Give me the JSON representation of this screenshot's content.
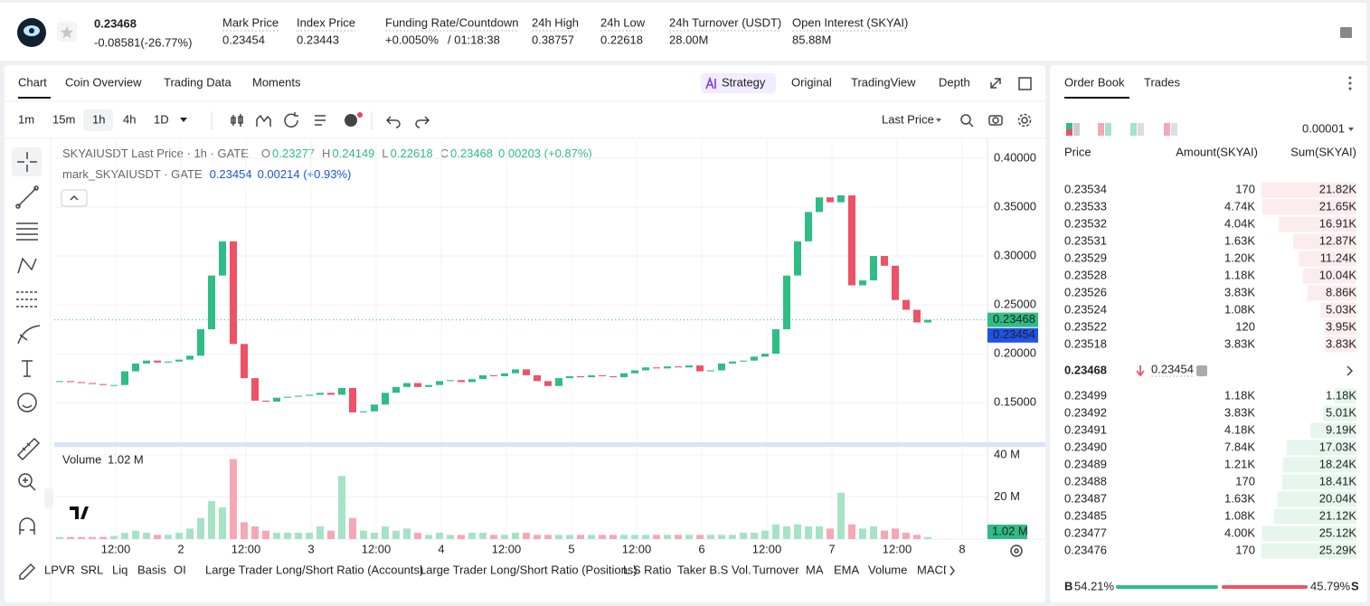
{
  "header": {
    "price": "0.23468",
    "change": "-0.08581(-26.77%)",
    "stats": [
      {
        "label": "Mark Price",
        "value": "0.23454"
      },
      {
        "label": "Index Price",
        "value": "0.23443"
      },
      {
        "label": "Funding Rate/Countdown",
        "value": "+0.0050%",
        "extra": "/ 01:18:38"
      },
      {
        "label": "24h High",
        "value": "0.38757"
      },
      {
        "label": "24h Low",
        "value": "0.22618"
      },
      {
        "label": "24h Turnover (USDT)",
        "value": "28.00M"
      },
      {
        "label": "Open Interest (SKYAI)",
        "value": "85.88M"
      }
    ]
  },
  "chart_tabs": [
    "Chart",
    "Coin Overview",
    "Trading Data",
    "Moments"
  ],
  "view_tabs": [
    "Strategy",
    "Original",
    "TradingView",
    "Depth"
  ],
  "intervals": [
    "1m",
    "15m",
    "1h",
    "4h",
    "1D"
  ],
  "price_source": "Last Price",
  "legend": {
    "title": "SKYAIUSDT Last Price · 1h · GATE",
    "ohlc": [
      {
        "k": "O",
        "v": "0.23277"
      },
      {
        "k": "H",
        "v": "0.24149"
      },
      {
        "k": "L",
        "v": "0.22618"
      },
      {
        "k": "C",
        "v": "0.23468"
      }
    ],
    "change": "0.00203 (+0.87%)",
    "mark_title": "mark_SKYAIUSDT · GATE",
    "mark_value": "0.23454",
    "mark_change": "0.00214 (+0.93%)"
  },
  "chart_data": {
    "type": "candlestick",
    "up_color": "#2ebd85",
    "down_color": "#ef5167",
    "closes": [
      0.172,
      0.171,
      0.17,
      0.169,
      0.168,
      0.168,
      0.182,
      0.19,
      0.193,
      0.191,
      0.192,
      0.194,
      0.198,
      0.225,
      0.28,
      0.315,
      0.21,
      0.175,
      0.152,
      0.151,
      0.155,
      0.156,
      0.157,
      0.158,
      0.16,
      0.158,
      0.165,
      0.14,
      0.141,
      0.148,
      0.16,
      0.166,
      0.17,
      0.166,
      0.168,
      0.172,
      0.173,
      0.171,
      0.174,
      0.178,
      0.177,
      0.18,
      0.184,
      0.178,
      0.172,
      0.167,
      0.175,
      0.177,
      0.176,
      0.178,
      0.177,
      0.176,
      0.18,
      0.183,
      0.186,
      0.185,
      0.187,
      0.186,
      0.188,
      0.182,
      0.183,
      0.19,
      0.192,
      0.193,
      0.197,
      0.2,
      0.225,
      0.28,
      0.315,
      0.345,
      0.36,
      0.355,
      0.362,
      0.27,
      0.275,
      0.3,
      0.29,
      0.255,
      0.245,
      0.232,
      0.23468
    ],
    "ylim": [
      0.1094,
      0.4185
    ],
    "yticks": [
      {
        "value": 0.4,
        "label": "0.40000"
      },
      {
        "value": 0.35,
        "label": "0.35000"
      },
      {
        "value": 0.3,
        "label": "0.30000"
      },
      {
        "value": 0.25,
        "label": "0.25000"
      },
      {
        "value": 0.2,
        "label": "0.20000"
      },
      {
        "value": 0.15,
        "label": "0.15000"
      }
    ],
    "last_price": {
      "value": 0.23468,
      "label": "0.23468"
    },
    "mark_price": {
      "value": 0.23454,
      "label": "0.23454"
    },
    "xticks": [
      "12:00",
      "2",
      "12:00",
      "3",
      "12:00",
      "4",
      "12:00",
      "5",
      "12:00",
      "6",
      "12:00",
      "7",
      "12:00",
      "8"
    ],
    "volume": {
      "title": "Volume",
      "up_color": "#a6e3c6",
      "down_color": "#f5a8b4",
      "values": [
        1,
        1,
        1,
        1,
        1,
        1.5,
        3,
        4,
        3,
        2,
        2,
        3,
        5,
        10,
        18,
        15,
        38,
        8,
        6,
        4,
        3,
        3,
        3,
        3,
        6,
        4,
        30,
        10,
        4,
        3,
        6,
        4,
        5,
        3,
        2,
        3,
        2,
        2,
        3,
        3,
        2,
        2,
        3,
        3,
        2,
        2,
        2,
        2,
        2,
        2,
        2,
        2,
        2,
        2,
        2,
        2,
        2,
        2,
        2,
        2,
        2,
        2,
        2,
        3,
        3,
        4,
        7,
        6,
        7,
        6,
        6,
        5,
        22,
        7,
        5,
        6,
        4,
        5,
        3,
        2,
        1.02
      ],
      "ylim": [
        0,
        43.8
      ],
      "yticks": [
        {
          "value": 40,
          "label": "40 M"
        },
        {
          "value": 20,
          "label": "20 M"
        }
      ],
      "last": {
        "value": 1.02,
        "label": "1.02 M"
      }
    }
  },
  "indicators": [
    "LPVR",
    "SRL",
    "Liq",
    "Basis",
    "OI",
    "Large Trader Long/Short Ratio (Accounts)",
    "Large Trader Long/Short Ratio (Positions)",
    "L.S Ratio",
    "Taker B.S Vol.",
    "Turnover",
    "MA",
    "EMA",
    "Volume",
    "MACD"
  ],
  "order_book": {
    "tabs": [
      "Order Book",
      "Trades"
    ],
    "precision": "0.00001",
    "headers": [
      "Price",
      "Amount(SKYAI)",
      "Sum(SKYAI)"
    ],
    "asks": [
      [
        "0.23534",
        "170",
        "21.82K"
      ],
      [
        "0.23533",
        "4.74K",
        "21.65K"
      ],
      [
        "0.23532",
        "4.04K",
        "16.91K"
      ],
      [
        "0.23531",
        "1.63K",
        "12.87K"
      ],
      [
        "0.23529",
        "1.20K",
        "11.24K"
      ],
      [
        "0.23528",
        "1.18K",
        "10.04K"
      ],
      [
        "0.23526",
        "3.83K",
        "8.86K"
      ],
      [
        "0.23524",
        "1.08K",
        "5.03K"
      ],
      [
        "0.23522",
        "120",
        "3.95K"
      ],
      [
        "0.23518",
        "3.83K",
        "3.83K"
      ]
    ],
    "last": "0.23468",
    "mark": "0.23454",
    "bids": [
      [
        "0.23499",
        "1.18K",
        "1.18K"
      ],
      [
        "0.23492",
        "3.83K",
        "5.01K"
      ],
      [
        "0.23491",
        "4.18K",
        "9.19K"
      ],
      [
        "0.23490",
        "7.84K",
        "17.03K"
      ],
      [
        "0.23489",
        "1.21K",
        "18.24K"
      ],
      [
        "0.23488",
        "170",
        "18.41K"
      ],
      [
        "0.23487",
        "1.63K",
        "20.04K"
      ],
      [
        "0.23485",
        "1.08K",
        "21.12K"
      ],
      [
        "0.23477",
        "4.00K",
        "25.12K"
      ],
      [
        "0.23476",
        "170",
        "25.29K"
      ]
    ],
    "buy": "B",
    "buy_ratio": "54.21%",
    "sell_ratio": "45.79%",
    "sell": "S"
  }
}
